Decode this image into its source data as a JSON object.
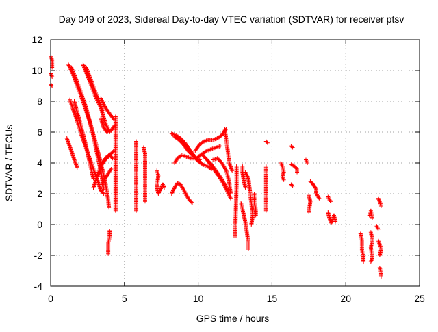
{
  "chart_data": {
    "type": "scatter",
    "title": "Day 049 of 2023, Sidereal Day-to-day VTEC variation (SDTVAR) for receiver ptsv",
    "xlabel": "GPS time / hours",
    "ylabel": "SDTVAR / TECUs",
    "xlim": [
      0,
      25
    ],
    "ylim": [
      -4,
      12
    ],
    "xticks": [
      "0",
      "5",
      "10",
      "15",
      "20",
      "25"
    ],
    "yticks": [
      "-4",
      "-2",
      "0",
      "2",
      "4",
      "6",
      "8",
      "10",
      "12"
    ],
    "grid": true,
    "marker": "+",
    "color": "#ff0000",
    "segments": [
      [
        [
          0.0,
          10.9
        ],
        [
          0.1,
          10.7
        ],
        [
          0.1,
          10.2
        ]
      ],
      [
        [
          0.0,
          9.8
        ],
        [
          0.1,
          9.6
        ]
      ],
      [
        [
          0.0,
          9.1
        ],
        [
          0.1,
          9.0
        ]
      ],
      [
        [
          1.2,
          10.4
        ],
        [
          1.5,
          9.8
        ],
        [
          1.8,
          9.0
        ],
        [
          2.2,
          8.0
        ],
        [
          2.6,
          6.8
        ],
        [
          3.0,
          5.5
        ],
        [
          3.4,
          4.0
        ],
        [
          3.7,
          2.8
        ],
        [
          3.9,
          1.6
        ],
        [
          3.95,
          1.1
        ]
      ],
      [
        [
          1.4,
          10.2
        ],
        [
          1.9,
          9.0
        ],
        [
          2.4,
          7.6
        ],
        [
          2.8,
          6.2
        ],
        [
          3.1,
          4.8
        ],
        [
          3.4,
          3.5
        ],
        [
          3.6,
          2.3
        ]
      ],
      [
        [
          1.3,
          8.1
        ],
        [
          1.7,
          7.0
        ],
        [
          2.1,
          5.8
        ],
        [
          2.5,
          4.7
        ],
        [
          2.9,
          3.6
        ],
        [
          3.2,
          2.8
        ],
        [
          3.4,
          2.2
        ],
        [
          3.6,
          2.0
        ]
      ],
      [
        [
          1.6,
          8.0
        ],
        [
          2.0,
          6.6
        ],
        [
          2.4,
          5.1
        ],
        [
          2.7,
          3.8
        ],
        [
          2.9,
          3.0
        ]
      ],
      [
        [
          1.1,
          5.6
        ],
        [
          1.4,
          4.8
        ],
        [
          1.6,
          4.2
        ],
        [
          1.8,
          3.7
        ]
      ],
      [
        [
          2.2,
          10.4
        ],
        [
          2.6,
          9.4
        ],
        [
          3.0,
          8.4
        ],
        [
          3.4,
          7.6
        ],
        [
          3.7,
          6.6
        ],
        [
          4.0,
          6.0
        ]
      ],
      [
        [
          2.4,
          10.2
        ],
        [
          2.8,
          9.2
        ],
        [
          3.2,
          8.2
        ],
        [
          3.5,
          7.4
        ]
      ],
      [
        [
          3.4,
          8.2
        ],
        [
          3.7,
          7.6
        ],
        [
          4.0,
          7.2
        ],
        [
          4.3,
          6.8
        ]
      ],
      [
        [
          3.4,
          6.9
        ],
        [
          3.6,
          6.3
        ],
        [
          3.8,
          6.0
        ],
        [
          4.1,
          6.1
        ],
        [
          4.3,
          6.4
        ]
      ],
      [
        [
          2.9,
          2.4
        ],
        [
          3.2,
          3.2
        ],
        [
          3.5,
          4.0
        ],
        [
          3.8,
          4.4
        ],
        [
          4.1,
          4.6
        ],
        [
          4.3,
          4.8
        ]
      ],
      [
        [
          3.1,
          3.0
        ],
        [
          3.4,
          3.8
        ],
        [
          3.7,
          4.2
        ],
        [
          4.0,
          4.5
        ],
        [
          4.2,
          4.3
        ]
      ],
      [
        [
          3.5,
          2.6
        ],
        [
          3.7,
          3.0
        ],
        [
          3.9,
          3.3
        ],
        [
          4.1,
          3.6
        ]
      ],
      [
        [
          4.4,
          7.0
        ],
        [
          4.4,
          5.0
        ],
        [
          4.4,
          4.2
        ],
        [
          4.4,
          1.5
        ],
        [
          4.4,
          0.9
        ]
      ],
      [
        [
          4.0,
          -0.4
        ],
        [
          4.0,
          -0.8
        ],
        [
          3.9,
          -1.2
        ],
        [
          3.9,
          -1.6
        ],
        [
          3.9,
          -1.9
        ]
      ],
      [
        [
          5.8,
          5.4
        ],
        [
          5.8,
          2.3
        ],
        [
          5.8,
          2.0
        ],
        [
          5.8,
          1.2
        ],
        [
          5.8,
          0.9
        ]
      ],
      [
        [
          6.3,
          5.0
        ],
        [
          6.4,
          4.6
        ],
        [
          6.4,
          3.2
        ],
        [
          6.4,
          2.9
        ],
        [
          6.4,
          2.1
        ],
        [
          6.4,
          1.8
        ],
        [
          6.4,
          1.5
        ]
      ],
      [
        [
          7.2,
          3.5
        ],
        [
          7.3,
          3.2
        ],
        [
          7.2,
          2.4
        ],
        [
          7.3,
          2.0
        ],
        [
          7.6,
          2.6
        ],
        [
          7.7,
          2.4
        ]
      ],
      [
        [
          8.2,
          5.9
        ],
        [
          8.5,
          5.8
        ],
        [
          8.8,
          5.6
        ],
        [
          9.1,
          5.3
        ],
        [
          9.4,
          4.9
        ],
        [
          9.7,
          4.5
        ],
        [
          10.0,
          4.1
        ],
        [
          10.3,
          3.9
        ],
        [
          10.6,
          3.8
        ],
        [
          10.9,
          3.6
        ]
      ],
      [
        [
          8.4,
          5.7
        ],
        [
          8.7,
          5.5
        ],
        [
          9.0,
          5.2
        ],
        [
          9.3,
          4.8
        ],
        [
          9.6,
          4.5
        ],
        [
          9.9,
          4.3
        ],
        [
          10.2,
          4.0
        ]
      ],
      [
        [
          8.4,
          4.0
        ],
        [
          8.6,
          4.3
        ],
        [
          8.9,
          4.5
        ],
        [
          9.2,
          4.4
        ],
        [
          9.5,
          4.3
        ],
        [
          9.8,
          4.3
        ],
        [
          10.1,
          4.2
        ]
      ],
      [
        [
          8.2,
          2.0
        ],
        [
          8.4,
          2.4
        ],
        [
          8.6,
          2.7
        ],
        [
          8.8,
          2.6
        ],
        [
          9.0,
          2.3
        ],
        [
          9.2,
          1.9
        ],
        [
          9.4,
          1.6
        ],
        [
          9.6,
          1.4
        ]
      ],
      [
        [
          9.8,
          4.8
        ],
        [
          10.1,
          5.2
        ],
        [
          10.4,
          5.4
        ],
        [
          10.7,
          5.5
        ],
        [
          11.0,
          5.5
        ],
        [
          11.3,
          5.6
        ],
        [
          11.6,
          5.8
        ],
        [
          11.9,
          6.2
        ]
      ],
      [
        [
          10.0,
          4.4
        ],
        [
          10.3,
          4.6
        ],
        [
          10.6,
          4.8
        ],
        [
          10.9,
          4.9
        ],
        [
          11.2,
          5.0
        ],
        [
          11.5,
          5.1
        ]
      ],
      [
        [
          10.3,
          4.5
        ],
        [
          10.6,
          4.2
        ],
        [
          10.9,
          3.8
        ],
        [
          11.2,
          3.4
        ],
        [
          11.5,
          3.0
        ],
        [
          11.8,
          2.5
        ],
        [
          12.0,
          2.1
        ],
        [
          12.2,
          1.7
        ]
      ],
      [
        [
          10.6,
          4.2
        ],
        [
          10.9,
          3.9
        ],
        [
          11.2,
          3.5
        ],
        [
          11.5,
          3.1
        ],
        [
          11.8,
          2.6
        ],
        [
          12.0,
          2.2
        ]
      ],
      [
        [
          11.0,
          4.2
        ],
        [
          11.3,
          4.3
        ],
        [
          11.6,
          4.0
        ],
        [
          11.9,
          3.5
        ],
        [
          12.1,
          2.8
        ],
        [
          12.2,
          2.0
        ]
      ],
      [
        [
          11.8,
          6.2
        ],
        [
          11.9,
          5.5
        ],
        [
          12.0,
          4.8
        ],
        [
          12.1,
          4.0
        ],
        [
          12.3,
          3.5
        ]
      ],
      [
        [
          12.6,
          3.8
        ],
        [
          12.6,
          2.6
        ],
        [
          12.5,
          -0.8
        ]
      ],
      [
        [
          13.0,
          3.8
        ],
        [
          13.0,
          3.4
        ],
        [
          13.1,
          2.8
        ],
        [
          13.2,
          2.4
        ]
      ],
      [
        [
          12.9,
          1.4
        ],
        [
          13.0,
          1.0
        ],
        [
          13.1,
          0.6
        ],
        [
          13.2,
          0.1
        ],
        [
          13.3,
          -0.5
        ],
        [
          13.4,
          -1.2
        ],
        [
          13.4,
          -1.6
        ]
      ],
      [
        [
          13.2,
          3.4
        ],
        [
          13.4,
          3.0
        ],
        [
          13.5,
          2.2
        ],
        [
          13.6,
          1.4
        ],
        [
          13.7,
          0.6
        ],
        [
          13.6,
          0.0
        ]
      ],
      [
        [
          13.8,
          2.0
        ],
        [
          13.8,
          1.4
        ],
        [
          13.9,
          1.0
        ],
        [
          13.9,
          0.6
        ]
      ],
      [
        [
          14.6,
          3.8
        ],
        [
          14.6,
          3.2
        ],
        [
          14.6,
          3.0
        ],
        [
          14.6,
          1.2
        ],
        [
          14.6,
          0.9
        ]
      ],
      [
        [
          14.6,
          5.4
        ],
        [
          14.7,
          5.3
        ]
      ],
      [
        [
          15.6,
          4.0
        ],
        [
          15.7,
          3.8
        ],
        [
          15.8,
          3.4
        ],
        [
          15.7,
          3.1
        ],
        [
          15.8,
          2.9
        ]
      ],
      [
        [
          16.3,
          5.1
        ],
        [
          16.4,
          5.0
        ]
      ],
      [
        [
          16.3,
          3.9
        ],
        [
          16.5,
          3.8
        ],
        [
          16.7,
          3.6
        ],
        [
          16.7,
          3.4
        ]
      ],
      [
        [
          16.3,
          2.6
        ],
        [
          16.4,
          2.5
        ]
      ],
      [
        [
          17.3,
          4.2
        ],
        [
          17.4,
          4.0
        ]
      ],
      [
        [
          17.6,
          2.8
        ],
        [
          17.8,
          2.6
        ],
        [
          18.0,
          2.3
        ],
        [
          18.0,
          2.0
        ],
        [
          18.2,
          1.7
        ]
      ],
      [
        [
          17.5,
          1.9
        ],
        [
          17.6,
          1.5
        ],
        [
          17.5,
          0.8
        ]
      ],
      [
        [
          18.8,
          1.8
        ],
        [
          18.9,
          1.6
        ],
        [
          19.0,
          1.5
        ]
      ],
      [
        [
          18.8,
          0.8
        ],
        [
          18.9,
          0.4
        ],
        [
          19.0,
          0.1
        ],
        [
          19.1,
          0.2
        ],
        [
          19.2,
          0.6
        ],
        [
          19.3,
          0.2
        ]
      ],
      [
        [
          21.0,
          -0.6
        ],
        [
          21.1,
          -1.0
        ],
        [
          21.1,
          -1.4
        ],
        [
          21.1,
          -1.7
        ],
        [
          21.2,
          -2.0
        ],
        [
          21.2,
          -2.4
        ]
      ],
      [
        [
          21.6,
          0.6
        ],
        [
          21.7,
          0.9
        ],
        [
          21.8,
          0.4
        ]
      ],
      [
        [
          21.7,
          -0.5
        ],
        [
          21.8,
          -1.0
        ],
        [
          21.7,
          -1.5
        ],
        [
          21.8,
          -2.2
        ],
        [
          21.7,
          -2.4
        ]
      ],
      [
        [
          22.1,
          -0.1
        ],
        [
          22.2,
          -0.3
        ]
      ],
      [
        [
          22.2,
          1.7
        ],
        [
          22.3,
          1.5
        ],
        [
          22.4,
          1.2
        ]
      ],
      [
        [
          22.2,
          -1.0
        ],
        [
          22.3,
          -1.3
        ],
        [
          22.4,
          -1.6
        ],
        [
          22.3,
          -2.0
        ]
      ],
      [
        [
          22.3,
          -2.8
        ],
        [
          22.4,
          -3.1
        ],
        [
          22.4,
          -3.4
        ]
      ]
    ]
  }
}
